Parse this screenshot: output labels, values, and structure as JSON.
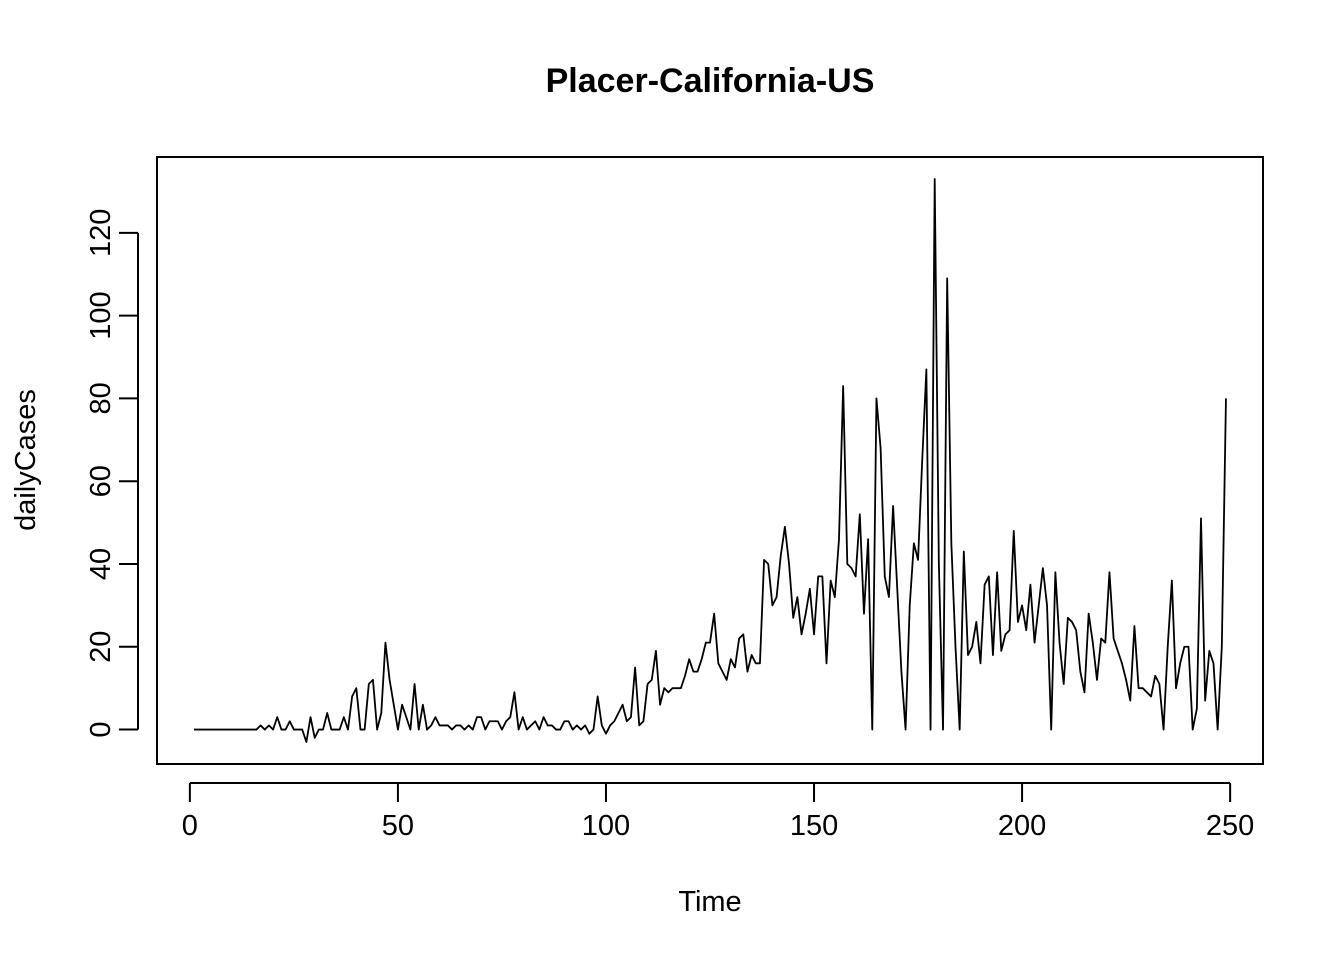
{
  "chart_data": {
    "type": "line",
    "title": "Placer-California-US",
    "xlabel": "Time",
    "ylabel": "dailyCases",
    "xlim": [
      -7.9,
      257.9
    ],
    "ylim": [
      -8.32,
      138.32
    ],
    "xticks": [
      0,
      50,
      100,
      150,
      200,
      250
    ],
    "yticks": [
      0,
      20,
      40,
      60,
      80,
      100,
      120
    ],
    "grid": false,
    "legend": "none",
    "line_color": "#000000",
    "series": [
      {
        "x_start": 1,
        "values": [
          0,
          0,
          0,
          0,
          0,
          0,
          0,
          0,
          0,
          0,
          0,
          0,
          0,
          0,
          0,
          0,
          1,
          0,
          1,
          0,
          3,
          0,
          0,
          2,
          0,
          0,
          0,
          -3,
          3,
          -2,
          0,
          0,
          4,
          0,
          0,
          0,
          3,
          0,
          8,
          10,
          0,
          0,
          11,
          12,
          0,
          4,
          21,
          12,
          6,
          0,
          6,
          3,
          0,
          11,
          0,
          6,
          0,
          1,
          3,
          1,
          1,
          1,
          0,
          1,
          1,
          0,
          1,
          0,
          3,
          3,
          0,
          2,
          2,
          2,
          0,
          2,
          3,
          9,
          0,
          3,
          0,
          1,
          2,
          0,
          3,
          1,
          1,
          0,
          0,
          2,
          2,
          0,
          1,
          0,
          1,
          -1,
          0,
          8,
          1,
          -1,
          1,
          2,
          4,
          6,
          2,
          3,
          15,
          1,
          2,
          11,
          12,
          19,
          6,
          10,
          9,
          10,
          10,
          10,
          13,
          17,
          14,
          14,
          17,
          21,
          21,
          28,
          16,
          14,
          12,
          17,
          15,
          22,
          23,
          14,
          18,
          16,
          16,
          41,
          40,
          30,
          32,
          42,
          49,
          40,
          27,
          32,
          23,
          28,
          34,
          23,
          37,
          37,
          16,
          36,
          32,
          46,
          83,
          40,
          39,
          37,
          52,
          28,
          46,
          0,
          80,
          68,
          37,
          32,
          54,
          34,
          14,
          0,
          30,
          45,
          41,
          65,
          87,
          0,
          133,
          40,
          0,
          109,
          45,
          20,
          0,
          43,
          18,
          20,
          26,
          16,
          35,
          37,
          18,
          38,
          19,
          23,
          24,
          48,
          26,
          30,
          24,
          35,
          21,
          30,
          39,
          30,
          0,
          38,
          21,
          11,
          27,
          26,
          24,
          14,
          9,
          28,
          21,
          12,
          22,
          21,
          38,
          22,
          19,
          16,
          12,
          7,
          25,
          10,
          10,
          9,
          8,
          13,
          11,
          0,
          20,
          36,
          10,
          16,
          20,
          20,
          0,
          5,
          51,
          7,
          19,
          16,
          0,
          20,
          80
        ]
      }
    ]
  }
}
